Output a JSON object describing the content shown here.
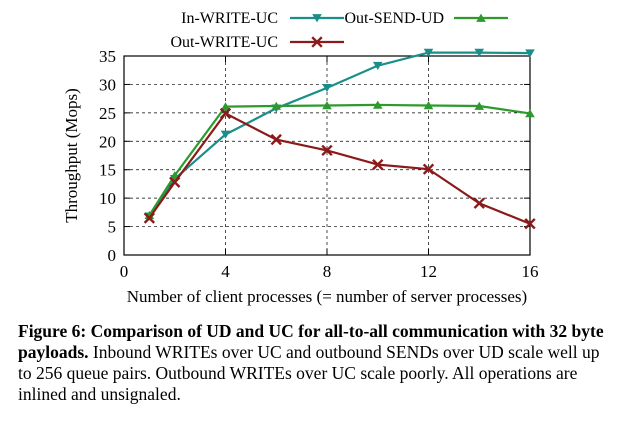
{
  "chart_data": {
    "type": "line",
    "title": "",
    "xlabel": "Number of client processes (= number of server processes)",
    "ylabel": "Throughput (Mops)",
    "xlim": [
      0,
      16
    ],
    "ylim": [
      0,
      35
    ],
    "xticks": [
      0,
      4,
      8,
      12,
      16
    ],
    "yticks": [
      0,
      5,
      10,
      15,
      20,
      25,
      30,
      35
    ],
    "grid": true,
    "legend_position": "top",
    "series": [
      {
        "name": "In-WRITE-UC",
        "color": "#1a8f8a",
        "marker": "triangle-down",
        "x": [
          1,
          2,
          4,
          6,
          8,
          10,
          12,
          14,
          16
        ],
        "y": [
          6.8,
          13.4,
          21.2,
          25.8,
          29.4,
          33.3,
          35.6,
          35.6,
          35.5
        ]
      },
      {
        "name": "Out-SEND-UD",
        "color": "#2e9a2e",
        "marker": "triangle-up",
        "x": [
          1,
          2,
          4,
          6,
          8,
          10,
          12,
          14,
          16
        ],
        "y": [
          7.0,
          14.0,
          26.1,
          26.2,
          26.3,
          26.4,
          26.3,
          26.2,
          24.9
        ]
      },
      {
        "name": "Out-WRITE-UC",
        "color": "#8b1a1a",
        "marker": "x",
        "x": [
          1,
          2,
          4,
          6,
          8,
          10,
          12,
          14,
          16
        ],
        "y": [
          6.5,
          12.8,
          24.9,
          20.3,
          18.4,
          15.9,
          15.1,
          9.1,
          5.5
        ]
      }
    ]
  },
  "caption": {
    "lead": "Figure 6: Comparison of UD and UC for all-to-all communication with 32 byte payloads.",
    "body": " Inbound WRITEs over UC and outbound SENDs over UD scale well up to 256 queue pairs. Outbound WRITEs over UC scale poorly. All operations are inlined and unsignaled."
  }
}
